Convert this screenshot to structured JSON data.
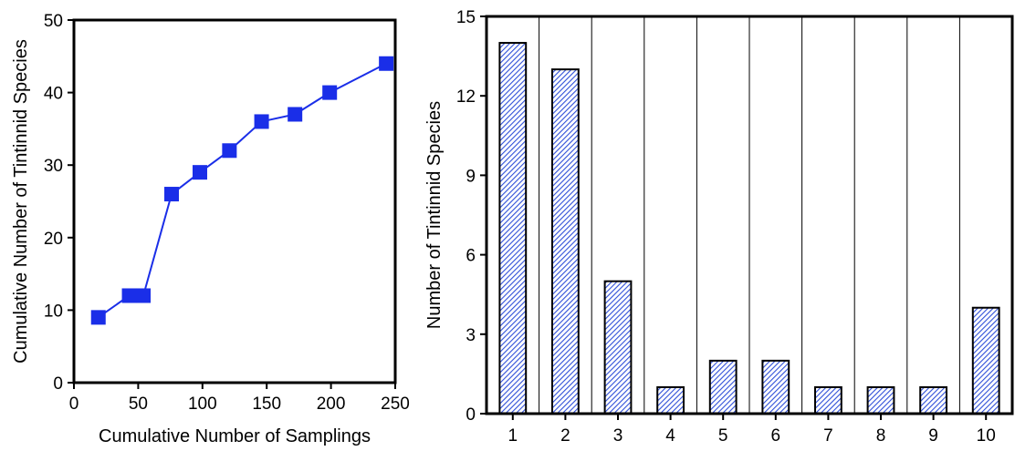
{
  "chart_data": [
    {
      "type": "line",
      "title": "",
      "xlabel": "Cumulative Number of Samplings",
      "ylabel": "Cumulative Number of Tintinnid Species",
      "xlim": [
        0,
        250
      ],
      "ylim": [
        0,
        50
      ],
      "xticks": [
        0,
        50,
        100,
        150,
        200,
        250
      ],
      "yticks": [
        0,
        10,
        20,
        30,
        40,
        50
      ],
      "xtick_labels": [
        "0",
        "50",
        "100",
        "150",
        "200",
        "250"
      ],
      "ytick_labels": [
        "0",
        "10",
        "20",
        "30",
        "40",
        "50"
      ],
      "grid": false,
      "color": "#1a2ee8",
      "marker": "square",
      "series": [
        {
          "x": [
            19,
            43,
            54,
            76,
            98,
            121,
            146,
            172,
            199,
            243
          ],
          "y": [
            9,
            12,
            12,
            26,
            29,
            32,
            36,
            37,
            40,
            44
          ]
        }
      ]
    },
    {
      "type": "bar",
      "title": "",
      "xlabel": "",
      "ylabel": "Number of Tintinnid Species",
      "categories": [
        "1",
        "2",
        "3",
        "4",
        "5",
        "6",
        "7",
        "8",
        "9",
        "10"
      ],
      "values": [
        14,
        13,
        5,
        1,
        2,
        2,
        1,
        1,
        1,
        4
      ],
      "ylim": [
        0,
        15
      ],
      "yticks": [
        0,
        3,
        6,
        9,
        12,
        15
      ],
      "ytick_labels": [
        "0",
        "3",
        "6",
        "9",
        "12",
        "15"
      ],
      "grid": "vertical separators between categories",
      "fill": "diagonal hatch",
      "hatch_color": "#2f4fd8"
    }
  ]
}
